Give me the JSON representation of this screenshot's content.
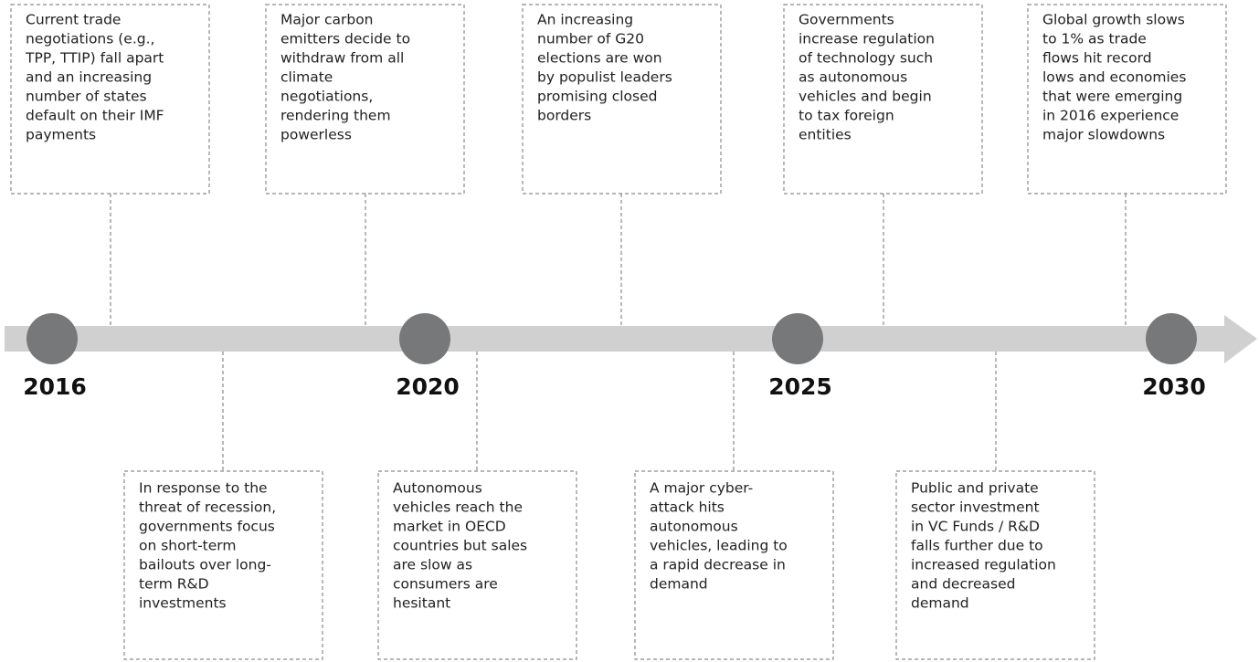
{
  "years": [
    "2016",
    "2020",
    "2025",
    "2030"
  ],
  "top_events": [
    {
      "lines": [
        "Current trade",
        "negotiations (e.g.,",
        "TPP, TTIP) fall apart",
        "and an increasing",
        "number of states",
        "default on their IMF",
        "payments"
      ]
    },
    {
      "lines": [
        "Major carbon",
        "emitters decide to",
        "withdraw from all",
        "climate",
        "negotiations,",
        "rendering them",
        "powerless"
      ]
    },
    {
      "lines": [
        "An increasing",
        "number of G20",
        "elections are won",
        "by populist leaders",
        "promising closed",
        "borders"
      ]
    },
    {
      "lines": [
        "Governments",
        "increase regulation",
        "of technology such",
        "as autonomous",
        "vehicles and begin",
        "to tax foreign",
        "entities"
      ]
    },
    {
      "lines": [
        "Global growth slows",
        "to 1% as trade",
        "flows hit record",
        "lows and economies",
        "that were emerging",
        "in 2016 experience",
        "major slowdowns"
      ]
    }
  ],
  "bottom_events": [
    {
      "lines": [
        "In response to the",
        "threat of recession,",
        "governments focus",
        "on short-term",
        "bailouts over long-",
        "term R&D",
        "investments"
      ]
    },
    {
      "lines": [
        "Autonomous",
        "vehicles reach the",
        "market in OECD",
        "countries but sales",
        "are slow as",
        "consumers are",
        "hesitant"
      ]
    },
    {
      "lines": [
        "A major cyber-",
        "attack hits",
        "autonomous",
        "vehicles, leading to",
        "a rapid decrease in",
        "demand"
      ]
    },
    {
      "lines": [
        "Public and private",
        "sector investment",
        "in VC Funds / R&D",
        "falls further due to",
        "increased regulation",
        "and decreased",
        "demand"
      ]
    }
  ]
}
